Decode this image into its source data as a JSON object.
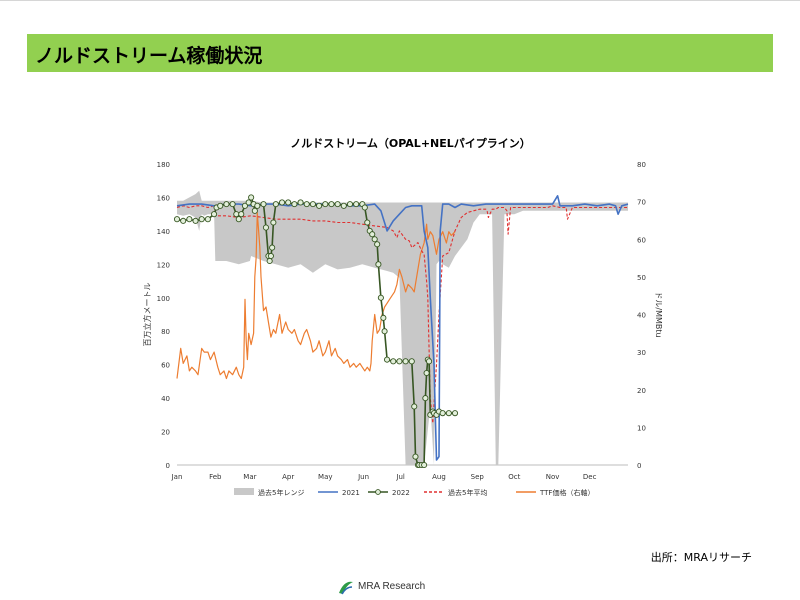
{
  "page": {
    "title": "ノルドストリーム稼働状況",
    "source": "出所：MRAリサーチ",
    "logo_text": "MRA Research"
  },
  "chart_data": {
    "type": "line",
    "title": "ノルドストリーム（OPAL+NELパイプライン）",
    "ylabel": "百万立方メートル",
    "y2label": "ドル/MMBtu",
    "ylim": [
      0,
      180
    ],
    "y2lim": [
      0,
      80
    ],
    "xlim": [
      0,
      365
    ],
    "yticks": [
      0,
      20,
      40,
      60,
      80,
      100,
      120,
      140,
      160,
      180
    ],
    "y2ticks": [
      0,
      10,
      20,
      30,
      40,
      50,
      60,
      70,
      80
    ],
    "months": [
      {
        "label": "Jan",
        "day": 0
      },
      {
        "label": "Feb",
        "day": 31
      },
      {
        "label": "Mar",
        "day": 59
      },
      {
        "label": "Apr",
        "day": 90
      },
      {
        "label": "May",
        "day": 120
      },
      {
        "label": "Jun",
        "day": 151
      },
      {
        "label": "Jul",
        "day": 181
      },
      {
        "label": "Aug",
        "day": 212
      },
      {
        "label": "Sep",
        "day": 243
      },
      {
        "label": "Oct",
        "day": 273
      },
      {
        "label": "Nov",
        "day": 304
      },
      {
        "label": "Dec",
        "day": 334
      }
    ],
    "legend": [
      "過去5年レンジ",
      "2021",
      "2022",
      "過去5年平均",
      "TTF価格（右軸）"
    ],
    "series": [
      {
        "name": "過去5年レンジ",
        "kind": "range",
        "color": "#c8c8c8",
        "x": [
          0,
          5,
          10,
          15,
          18,
          20,
          22,
          25,
          30,
          31,
          32,
          40,
          50,
          59,
          60,
          70,
          80,
          90,
          100,
          110,
          120,
          130,
          140,
          150,
          160,
          170,
          175,
          180,
          185,
          190,
          200,
          205,
          208,
          210,
          212,
          215,
          220,
          225,
          230,
          235,
          240,
          243,
          245,
          250,
          255,
          258,
          260,
          265,
          270,
          273,
          280,
          290,
          300,
          304,
          310,
          315,
          320,
          325,
          330,
          334,
          340,
          345,
          350,
          355,
          360,
          365
        ],
        "low": [
          150,
          149,
          150,
          148,
          140,
          150,
          149,
          150,
          150,
          122,
          122,
          122,
          120,
          122,
          125,
          122,
          120,
          118,
          120,
          115,
          120,
          117,
          118,
          120,
          118,
          116,
          115,
          112,
          0,
          0,
          0,
          35,
          0,
          120,
          122,
          120,
          118,
          125,
          130,
          135,
          145,
          148,
          150,
          150,
          150,
          0,
          0,
          150,
          150,
          150,
          152,
          152,
          152,
          152,
          152,
          152,
          152,
          152,
          152,
          152,
          152,
          152,
          152,
          152,
          152,
          152
        ],
        "high": [
          158,
          158,
          160,
          162,
          164,
          158,
          158,
          158,
          158,
          158,
          158,
          158,
          158,
          158,
          158,
          157,
          157,
          157,
          157,
          157,
          157,
          157,
          157,
          157,
          157,
          157,
          157,
          157,
          157,
          157,
          157,
          157,
          157,
          157,
          157,
          157,
          157,
          157,
          157,
          157,
          157,
          157,
          157,
          157,
          157,
          157,
          157,
          157,
          157,
          157,
          157,
          157,
          157,
          157,
          157,
          157,
          157,
          157,
          157,
          157,
          157,
          157,
          157,
          157,
          157,
          157
        ]
      },
      {
        "name": "2021",
        "color": "#4472c4",
        "x": [
          0,
          10,
          20,
          30,
          40,
          50,
          60,
          70,
          80,
          90,
          100,
          110,
          120,
          130,
          140,
          150,
          160,
          165,
          170,
          175,
          180,
          185,
          190,
          198,
          200,
          203,
          205,
          208,
          210,
          212,
          213,
          215,
          220,
          225,
          230,
          240,
          250,
          260,
          270,
          280,
          290,
          300,
          304,
          308,
          310,
          320,
          330,
          340,
          350,
          355,
          357,
          360,
          365
        ],
        "y": [
          155,
          156,
          156,
          155,
          156,
          156,
          155,
          156,
          156,
          155,
          156,
          156,
          156,
          156,
          155,
          155,
          156,
          152,
          140,
          146,
          150,
          154,
          155,
          155,
          140,
          130,
          100,
          60,
          3,
          5,
          140,
          156,
          156,
          154,
          156,
          155,
          156,
          156,
          156,
          156,
          156,
          156,
          156,
          161,
          155,
          155,
          156,
          155,
          156,
          155,
          150,
          155,
          156
        ]
      },
      {
        "name": "2022",
        "color": "#375623",
        "x": [
          0,
          5,
          10,
          15,
          20,
          25,
          30,
          32,
          35,
          40,
          45,
          48,
          50,
          52,
          55,
          58,
          60,
          62,
          63,
          65,
          70,
          72,
          74,
          75,
          76,
          77,
          78,
          80,
          85,
          90,
          95,
          100,
          105,
          110,
          115,
          120,
          125,
          130,
          135,
          140,
          145,
          150,
          152,
          154,
          156,
          158,
          160,
          162,
          163,
          165,
          167,
          168,
          170,
          175,
          180,
          185,
          190,
          192,
          193,
          195,
          196,
          198,
          200,
          201,
          202,
          203,
          204,
          205,
          207,
          208,
          210,
          212,
          215,
          220,
          225
        ],
        "y": [
          147,
          146,
          147,
          146,
          147,
          147,
          150,
          154,
          155,
          156,
          156,
          150,
          147,
          150,
          155,
          157,
          160,
          156,
          152,
          155,
          156,
          142,
          125,
          122,
          125,
          130,
          145,
          156,
          157,
          157,
          156,
          157,
          156,
          156,
          155,
          156,
          156,
          156,
          155,
          156,
          156,
          156,
          154,
          145,
          140,
          138,
          135,
          132,
          120,
          100,
          88,
          80,
          63,
          62,
          62,
          62,
          62,
          35,
          5,
          0,
          0,
          0,
          0,
          40,
          55,
          63,
          62,
          30,
          32,
          31,
          30,
          32,
          31,
          31,
          31
        ]
      },
      {
        "name": "過去5年平均",
        "color": "#e03030",
        "dashed": true,
        "x": [
          0,
          5,
          10,
          15,
          20,
          25,
          30,
          32,
          40,
          50,
          60,
          70,
          80,
          90,
          100,
          110,
          120,
          130,
          140,
          150,
          160,
          170,
          175,
          178,
          180,
          182,
          185,
          188,
          190,
          195,
          198,
          200,
          202,
          203,
          205,
          207,
          210,
          212,
          215,
          220,
          225,
          230,
          235,
          240,
          245,
          250,
          251,
          252,
          255,
          258,
          260,
          265,
          267,
          268,
          270,
          280,
          290,
          300,
          304,
          310,
          315,
          316,
          320,
          330,
          340,
          350,
          360,
          365
        ],
        "y": [
          154,
          155,
          154,
          155,
          155,
          154,
          155,
          149,
          149,
          148,
          149,
          148,
          147,
          147,
          147,
          146,
          146,
          145,
          145,
          144,
          143,
          142,
          140,
          136,
          140,
          138,
          135,
          134,
          130,
          133,
          128,
          126,
          110,
          100,
          40,
          25,
          60,
          90,
          125,
          127,
          140,
          148,
          151,
          152,
          153,
          153,
          152,
          148,
          153,
          153,
          154,
          154,
          152,
          138,
          154,
          154,
          154,
          154,
          155,
          154,
          154,
          147,
          154,
          154,
          154,
          154,
          154,
          154
        ]
      },
      {
        "name": "TTF価格（右軸）",
        "axis": "right",
        "color": "#ed7d31",
        "x": [
          0,
          3,
          5,
          8,
          10,
          12,
          15,
          17,
          20,
          22,
          25,
          27,
          30,
          33,
          35,
          38,
          40,
          42,
          45,
          48,
          50,
          52,
          54,
          55,
          56,
          57,
          58,
          60,
          62,
          63,
          64,
          65,
          67,
          68,
          70,
          72,
          74,
          76,
          78,
          80,
          83,
          85,
          88,
          90,
          93,
          95,
          98,
          100,
          103,
          105,
          108,
          110,
          113,
          115,
          118,
          120,
          123,
          125,
          128,
          130,
          133,
          135,
          138,
          140,
          143,
          145,
          148,
          150,
          152,
          154,
          156,
          157,
          158,
          160,
          162,
          164,
          166,
          168,
          170,
          172,
          174,
          176,
          178,
          180,
          182,
          185,
          187,
          190,
          192,
          195,
          197,
          200,
          202,
          203,
          205,
          207,
          210,
          212,
          215,
          218,
          220,
          222,
          225
        ],
        "y": [
          23,
          31,
          27,
          29,
          25,
          26,
          25,
          24,
          31,
          30,
          30,
          28,
          30,
          26,
          24,
          25,
          23,
          25,
          24,
          26,
          24,
          23,
          26,
          44,
          33,
          28,
          35,
          32,
          35,
          50,
          55,
          67,
          58,
          50,
          41,
          42,
          38,
          34,
          36,
          35,
          40,
          35,
          38,
          36,
          35,
          36,
          33,
          32,
          35,
          36,
          33,
          30,
          31,
          33,
          29,
          30,
          33,
          29,
          31,
          29,
          28,
          27,
          28,
          26,
          27,
          26,
          27,
          26,
          25,
          26,
          25,
          27,
          33,
          40,
          35,
          36,
          40,
          42,
          43,
          44,
          45,
          46,
          48,
          52,
          50,
          46,
          48,
          47,
          46,
          52,
          56,
          59,
          64,
          60,
          62,
          61,
          56,
          60,
          62,
          59,
          62,
          61,
          62
        ]
      }
    ]
  }
}
